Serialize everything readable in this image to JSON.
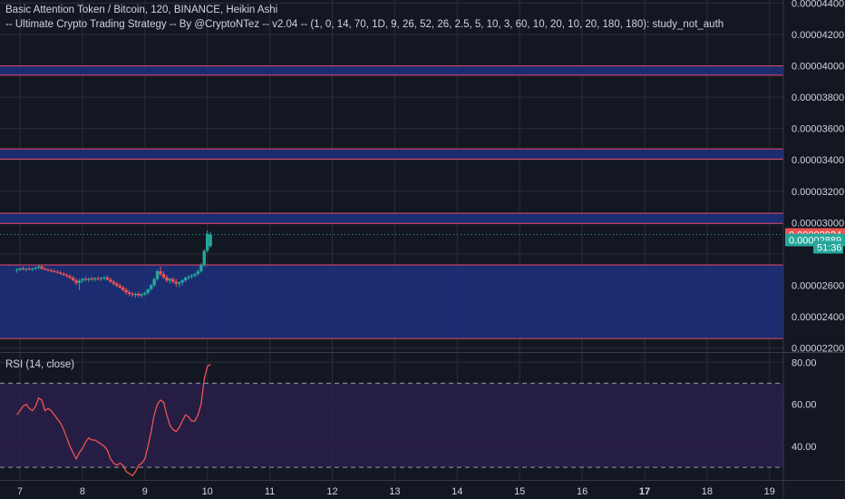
{
  "legend": {
    "line1": "Basic Attention Token / Bitcoin, 120, BINANCE, Heikin Ashi",
    "line2": "-- Ultimate Crypto Trading Strategy -- By @CryptoNTez -- v2.04 -- (1, 0, 14, 70, 1D, 9, 26, 52, 26, 2.5, 5, 10, 3, 60, 10, 20, 10, 20, 180, 180): study_not_auth"
  },
  "colors": {
    "background": "#131722",
    "grid": "#2a2e39",
    "zone_fill": "#1d2f7a",
    "zone_border": "#e84a6a",
    "up": "#26a69a",
    "down": "#ef5350",
    "rsi_line": "#ef5350",
    "rsi_fill": "#2a1f4a",
    "price_label_red": "#ef5350",
    "price_label_green": "#26a69a"
  },
  "price_axis": {
    "ticks": [
      "0.00004400",
      "0.00004200",
      "0.00004000",
      "0.00003800",
      "0.00003600",
      "0.00003400",
      "0.00003200",
      "0.00003000",
      "0.00002600",
      "0.00002400",
      "0.00002200"
    ],
    "labels": [
      {
        "text": "0.00002924",
        "value": 2.924e-05,
        "color": "red"
      },
      {
        "text": "0.00002889",
        "value": 2.889e-05,
        "color": "green"
      },
      {
        "text": "51:36",
        "value": 2.843e-05,
        "color": "green"
      }
    ]
  },
  "rsi": {
    "label": "RSI (14, close)",
    "ticks": [
      "80.00",
      "60.00",
      "40.00"
    ],
    "bands": [
      30,
      70
    ]
  },
  "x_axis": {
    "ticks": [
      "7",
      "8",
      "9",
      "10",
      "11",
      "12",
      "13",
      "14",
      "15",
      "16",
      "17",
      "18",
      "19"
    ],
    "bold": [
      "17"
    ]
  },
  "chart_data": [
    {
      "type": "candlestick",
      "title": "Basic Attention Token / Bitcoin, 120, BINANCE, Heikin Ashi",
      "ylim": [
        2.18e-05,
        4.42e-05
      ],
      "zones": [
        {
          "low": 3.94e-05,
          "high": 4e-05
        },
        {
          "low": 3.405e-05,
          "high": 3.47e-05
        },
        {
          "low": 2.995e-05,
          "high": 3.06e-05
        },
        {
          "low": 2.26e-05,
          "high": 2.73e-05
        }
      ],
      "current_price_line": 2.924e-05,
      "candles": [
        [
          6.95,
          2.695e-05,
          2.71e-05,
          2.68e-05,
          2.7e-05
        ],
        [
          7.0,
          2.7e-05,
          2.715e-05,
          2.69e-05,
          2.708e-05
        ],
        [
          7.05,
          2.708e-05,
          2.72e-05,
          2.695e-05,
          2.7e-05
        ],
        [
          7.1,
          2.7e-05,
          2.712e-05,
          2.69e-05,
          2.705e-05
        ],
        [
          7.15,
          2.705e-05,
          2.716e-05,
          2.695e-05,
          2.702e-05
        ],
        [
          7.2,
          2.702e-05,
          2.714e-05,
          2.69e-05,
          2.706e-05
        ],
        [
          7.25,
          2.706e-05,
          2.72e-05,
          2.695e-05,
          2.712e-05
        ],
        [
          7.3,
          2.712e-05,
          2.728e-05,
          2.7e-05,
          2.72e-05
        ],
        [
          7.35,
          2.72e-05,
          2.73e-05,
          2.7e-05,
          2.705e-05
        ],
        [
          7.4,
          2.705e-05,
          2.715e-05,
          2.695e-05,
          2.7e-05
        ],
        [
          7.45,
          2.7e-05,
          2.71e-05,
          2.688e-05,
          2.695e-05
        ],
        [
          7.5,
          2.695e-05,
          2.706e-05,
          2.684e-05,
          2.69e-05
        ],
        [
          7.55,
          2.69e-05,
          2.702e-05,
          2.68e-05,
          2.686e-05
        ],
        [
          7.6,
          2.686e-05,
          2.698e-05,
          2.675e-05,
          2.68e-05
        ],
        [
          7.65,
          2.68e-05,
          2.692e-05,
          2.668e-05,
          2.672e-05
        ],
        [
          7.7,
          2.672e-05,
          2.684e-05,
          2.66e-05,
          2.665e-05
        ],
        [
          7.75,
          2.665e-05,
          2.678e-05,
          2.65e-05,
          2.658e-05
        ],
        [
          7.8,
          2.658e-05,
          2.67e-05,
          2.64e-05,
          2.648e-05
        ],
        [
          7.85,
          2.648e-05,
          2.66e-05,
          2.625e-05,
          2.632e-05
        ],
        [
          7.9,
          2.632e-05,
          2.645e-05,
          2.6e-05,
          2.615e-05
        ],
        [
          7.95,
          2.615e-05,
          2.64e-05,
          2.57e-05,
          2.63e-05
        ],
        [
          8.0,
          2.63e-05,
          2.648e-05,
          2.615e-05,
          2.64e-05
        ],
        [
          8.05,
          2.64e-05,
          2.655e-05,
          2.625e-05,
          2.635e-05
        ],
        [
          8.1,
          2.635e-05,
          2.65e-05,
          2.62e-05,
          2.642e-05
        ],
        [
          8.15,
          2.642e-05,
          2.656e-05,
          2.628e-05,
          2.638e-05
        ],
        [
          8.2,
          2.638e-05,
          2.652e-05,
          2.624e-05,
          2.645e-05
        ],
        [
          8.25,
          2.645e-05,
          2.658e-05,
          2.63e-05,
          2.64e-05
        ],
        [
          8.3,
          2.64e-05,
          2.654e-05,
          2.626e-05,
          2.646e-05
        ],
        [
          8.35,
          2.646e-05,
          2.66e-05,
          2.632e-05,
          2.65e-05
        ],
        [
          8.4,
          2.65e-05,
          2.662e-05,
          2.63e-05,
          2.636e-05
        ],
        [
          8.45,
          2.636e-05,
          2.648e-05,
          2.615e-05,
          2.622e-05
        ],
        [
          8.5,
          2.622e-05,
          2.636e-05,
          2.6e-05,
          2.61e-05
        ],
        [
          8.55,
          2.61e-05,
          2.624e-05,
          2.588e-05,
          2.598e-05
        ],
        [
          8.6,
          2.598e-05,
          2.612e-05,
          2.578e-05,
          2.585e-05
        ],
        [
          8.65,
          2.585e-05,
          2.598e-05,
          2.56e-05,
          2.57e-05
        ],
        [
          8.7,
          2.57e-05,
          2.585e-05,
          2.54e-05,
          2.555e-05
        ],
        [
          8.75,
          2.555e-05,
          2.57e-05,
          2.53e-05,
          2.545e-05
        ],
        [
          8.8,
          2.545e-05,
          2.56e-05,
          2.525e-05,
          2.538e-05
        ],
        [
          8.85,
          2.538e-05,
          2.555e-05,
          2.52e-05,
          2.545e-05
        ],
        [
          8.9,
          2.545e-05,
          2.56e-05,
          2.525e-05,
          2.535e-05
        ],
        [
          8.95,
          2.535e-05,
          2.552e-05,
          2.52e-05,
          2.542e-05
        ],
        [
          9.0,
          2.542e-05,
          2.56e-05,
          2.53e-05,
          2.552e-05
        ],
        [
          9.05,
          2.552e-05,
          2.58e-05,
          2.54e-05,
          2.575e-05
        ],
        [
          9.1,
          2.575e-05,
          2.61e-05,
          2.565e-05,
          2.6e-05
        ],
        [
          9.15,
          2.6e-05,
          2.65e-05,
          2.59e-05,
          2.64e-05
        ],
        [
          9.2,
          2.64e-05,
          2.7e-05,
          2.63e-05,
          2.69e-05
        ],
        [
          9.25,
          2.69e-05,
          2.72e-05,
          2.66e-05,
          2.67e-05
        ],
        [
          9.3,
          2.67e-05,
          2.69e-05,
          2.64e-05,
          2.65e-05
        ],
        [
          9.35,
          2.65e-05,
          2.665e-05,
          2.62e-05,
          2.63e-05
        ],
        [
          9.4,
          2.63e-05,
          2.648e-05,
          2.61e-05,
          2.64e-05
        ],
        [
          9.45,
          2.64e-05,
          2.652e-05,
          2.612e-05,
          2.622e-05
        ],
        [
          9.5,
          2.622e-05,
          2.64e-05,
          2.59e-05,
          2.61e-05
        ],
        [
          9.55,
          2.61e-05,
          2.625e-05,
          2.588e-05,
          2.618e-05
        ],
        [
          9.6,
          2.618e-05,
          2.64e-05,
          2.6e-05,
          2.632e-05
        ],
        [
          9.65,
          2.632e-05,
          2.655e-05,
          2.62e-05,
          2.648e-05
        ],
        [
          9.7,
          2.648e-05,
          2.665e-05,
          2.635e-05,
          2.655e-05
        ],
        [
          9.75,
          2.655e-05,
          2.672e-05,
          2.64e-05,
          2.662e-05
        ],
        [
          9.8,
          2.662e-05,
          2.68e-05,
          2.65e-05,
          2.672e-05
        ],
        [
          9.85,
          2.672e-05,
          2.7e-05,
          2.66e-05,
          2.69e-05
        ],
        [
          9.9,
          2.69e-05,
          2.74e-05,
          2.68e-05,
          2.73e-05
        ],
        [
          9.95,
          2.73e-05,
          2.83e-05,
          2.72e-05,
          2.82e-05
        ],
        [
          10.0,
          2.82e-05,
          2.95e-05,
          2.81e-05,
          2.93e-05
        ],
        [
          10.05,
          2.85e-05,
          2.94e-05,
          2.84e-05,
          2.924e-05
        ]
      ]
    },
    {
      "type": "line",
      "title": "RSI (14, close)",
      "ylim": [
        24,
        84
      ],
      "x": [
        6.95,
        7.0,
        7.05,
        7.1,
        7.15,
        7.2,
        7.25,
        7.3,
        7.35,
        7.4,
        7.45,
        7.5,
        7.55,
        7.6,
        7.65,
        7.7,
        7.75,
        7.8,
        7.85,
        7.9,
        7.95,
        8.0,
        8.05,
        8.1,
        8.15,
        8.2,
        8.25,
        8.3,
        8.35,
        8.4,
        8.45,
        8.5,
        8.55,
        8.6,
        8.65,
        8.7,
        8.75,
        8.8,
        8.85,
        8.9,
        8.95,
        9.0,
        9.05,
        9.1,
        9.15,
        9.2,
        9.25,
        9.3,
        9.35,
        9.4,
        9.45,
        9.5,
        9.55,
        9.6,
        9.65,
        9.7,
        9.75,
        9.8,
        9.85,
        9.9,
        9.95,
        10.0,
        10.05
      ],
      "values": [
        55,
        57,
        59,
        60,
        58,
        57,
        59,
        63,
        62,
        57,
        58,
        57,
        55,
        53,
        51,
        48,
        44,
        40,
        37,
        34,
        37,
        39,
        42,
        44,
        43,
        43,
        42,
        41,
        40,
        38,
        34,
        32,
        31,
        32,
        31,
        28,
        27,
        26,
        28,
        31,
        32,
        34,
        40,
        47,
        55,
        60,
        62,
        61,
        55,
        50,
        48,
        47,
        49,
        52,
        55,
        54,
        52,
        52,
        55,
        60,
        72,
        78,
        79
      ]
    }
  ]
}
